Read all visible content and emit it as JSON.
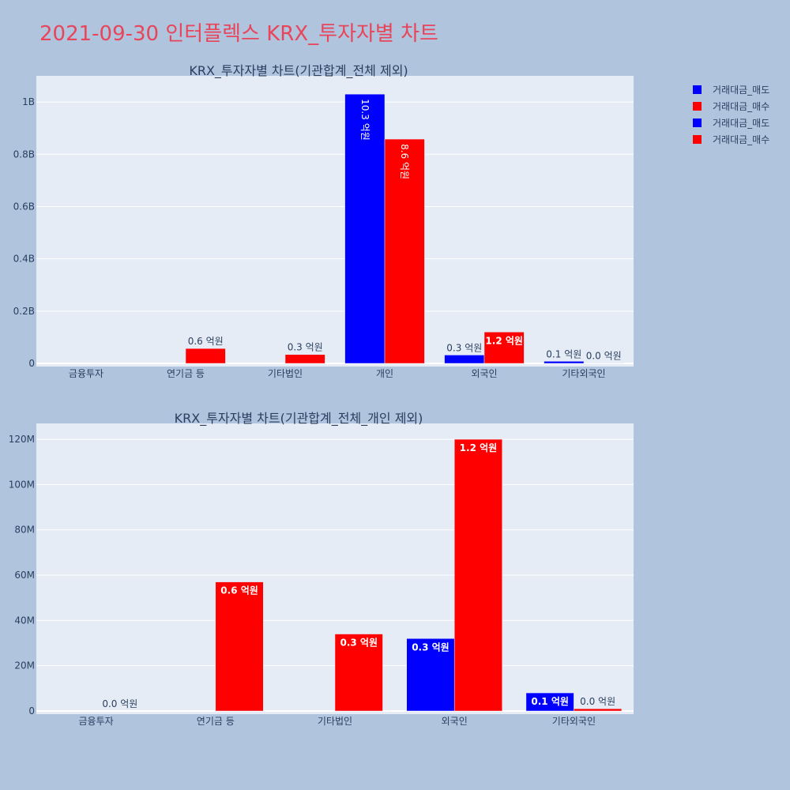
{
  "page_title": "2021-09-30 인터플렉스 KRX_투자자별 차트",
  "colors": {
    "background": "#b0c4de",
    "plot_bg": "#e5ecf6",
    "sell": "#0000ff",
    "buy": "#ff0000",
    "title": "#e8455a"
  },
  "legend": [
    "거래대금_매도",
    "거래대금_매수",
    "거래대금_매도",
    "거래대금_매수"
  ],
  "chart_data": [
    {
      "type": "bar",
      "title": "KRX_투자자별 차트(기관합계_전체 제외)",
      "categories": [
        "금융투자",
        "연기금 등",
        "기타법인",
        "개인",
        "외국인",
        "기타외국인"
      ],
      "series": [
        {
          "name": "거래대금_매도",
          "values": [
            0,
            0,
            0,
            1030000000,
            32000000,
            8000000
          ],
          "labels": [
            "",
            "",
            "",
            "10.3 억원",
            "0.3 억원",
            "0.1 억원"
          ]
        },
        {
          "name": "거래대금_매수",
          "values": [
            0,
            57000000,
            34000000,
            858000000,
            120000000,
            1000000
          ],
          "labels": [
            "",
            "0.6 억원",
            "0.3 억원",
            "8.6 억원",
            "1.2 억원",
            "0.0 억원"
          ]
        }
      ],
      "ylim": [
        0,
        1100000000
      ],
      "yticks": [
        0,
        200000000,
        400000000,
        600000000,
        800000000,
        1000000000
      ],
      "ytick_labels": [
        "0",
        "0.2B",
        "0.4B",
        "0.6B",
        "0.8B",
        "1B"
      ],
      "grid": true
    },
    {
      "type": "bar",
      "title": "KRX_투자자별 차트(기관합계_전체_개인 제외)",
      "categories": [
        "금융투자",
        "연기금 등",
        "기타법인",
        "외국인",
        "기타외국인"
      ],
      "series": [
        {
          "name": "거래대금_매도",
          "values": [
            0,
            0,
            0,
            32000000,
            8000000
          ],
          "labels": [
            "",
            "",
            "",
            "0.3 억원",
            "0.1 억원"
          ]
        },
        {
          "name": "거래대금_매수",
          "values": [
            0,
            57000000,
            34000000,
            120000000,
            1000000
          ],
          "labels": [
            "0.0 억원",
            "0.6 억원",
            "0.3 억원",
            "1.2 억원",
            "0.0 억원"
          ]
        }
      ],
      "ylim": [
        0,
        127000000
      ],
      "yticks": [
        0,
        20000000,
        40000000,
        60000000,
        80000000,
        100000000,
        120000000
      ],
      "ytick_labels": [
        "0",
        "20M",
        "40M",
        "60M",
        "80M",
        "100M",
        "120M"
      ],
      "grid": true
    }
  ]
}
